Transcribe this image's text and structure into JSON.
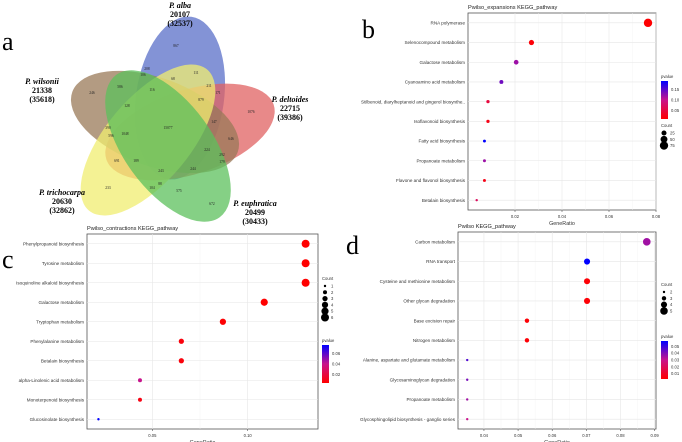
{
  "venn": {
    "letter": "a",
    "sets": [
      {
        "key": "alba",
        "name": "P. alba",
        "genes": "20107",
        "total": "(32537)",
        "color": "#5a6fc8"
      },
      {
        "key": "deltoides",
        "name": "P. deltoides",
        "genes": "22715",
        "total": "(39386)",
        "color": "#e06262"
      },
      {
        "key": "wilsonii",
        "name": "P. wilsonii",
        "genes": "21338",
        "total": "(35618)",
        "color": "#9a7a58"
      },
      {
        "key": "trichocarpa",
        "name": "P. trichocarpa",
        "genes": "20630",
        "total": "(32862)",
        "color": "#f0ee70"
      },
      {
        "key": "euphratica",
        "name": "P. euphratica",
        "genes": "20499",
        "total": "(30433)",
        "color": "#5cc05c"
      }
    ],
    "counts": [
      "867",
      "208",
      "106",
      "68",
      "111",
      "211",
      "171",
      "246",
      "586",
      "116",
      "879",
      "128",
      "147",
      "15077",
      "390",
      "596",
      "1048",
      "646",
      "224",
      "292",
      "179",
      "691",
      "189",
      "243",
      "244",
      "88",
      "104",
      "575",
      "233",
      "672",
      "1076"
    ]
  },
  "chart_data": [
    {
      "letter": "b",
      "type": "scatter",
      "title": "Pwilso_expansions KEGG_pathway",
      "xlabel": "GeneRatio",
      "ylabel": "",
      "xlim": [
        0,
        0.08
      ],
      "xticks": [
        "0.02",
        "0.04",
        "0.06",
        "0.08"
      ],
      "xtick_values": [
        0.02,
        0.04,
        0.06,
        0.08
      ],
      "categories": [
        "RNA polymerase",
        "Selenocompound metabolism",
        "Galactose metabolism",
        "Cyanoamino acid metabolism",
        "Stilbenoid, diarylheptanoid and gingerol biosynthe..",
        "Isoflavonoid biosynthesis",
        "Fatty acid biosynthesis",
        "Propanoate metabolism",
        "Flavone and flavonol biosynthesis",
        "Betalain biosynthesis"
      ],
      "x": [
        0.0766,
        0.027,
        0.0205,
        0.0142,
        0.0085,
        0.0085,
        0.007,
        0.007,
        0.007,
        0.0037
      ],
      "count": [
        77,
        27,
        21,
        14,
        9,
        9,
        7,
        7,
        7,
        4
      ],
      "pvalue": [
        0.001,
        0.005,
        0.11,
        0.13,
        0.04,
        0.015,
        0.18,
        0.11,
        0.015,
        0.06
      ],
      "pvalue_range": [
        0,
        0.18
      ],
      "count_legend": {
        "title": "Count",
        "values": [
          "25",
          "50",
          "75"
        ],
        "nums": [
          25,
          50,
          75
        ]
      },
      "pvalue_legend": {
        "title": "pvalue",
        "ticks": [
          "0.15",
          "0.10",
          "0.05"
        ]
      },
      "legend_position": "right"
    },
    {
      "letter": "c",
      "type": "scatter",
      "title": "Pwilso_contractions KEGG_pathway",
      "xlabel": "GeneRatio",
      "ylabel": "",
      "xlim": [
        0.0157,
        0.1369
      ],
      "xticks": [
        "0.05",
        "0.10"
      ],
      "xtick_values": [
        0.05,
        0.1
      ],
      "categories": [
        "Phenylpropanoid biosynthesis",
        "Tyrosine metabolism",
        "Isoquinoline alkaloid biosynthesis",
        "Galactose metabolism",
        "Tryptophan metabolism",
        "Phenylalanine metabolism",
        "Betalain biosynthesis",
        "alpha-Linolenic acid metabolism",
        "Monoterpenoid biosynthesis",
        "Glucosinolate biosynthesis"
      ],
      "x": [
        0.1304,
        0.1304,
        0.1304,
        0.1087,
        0.087,
        0.0652,
        0.0652,
        0.0435,
        0.0435,
        0.0217
      ],
      "count": [
        6,
        6,
        6,
        5,
        4,
        3,
        3,
        2,
        2,
        1
      ],
      "pvalue": [
        0.005,
        0.005,
        0.005,
        0.005,
        0.006,
        0.008,
        0.008,
        0.04,
        0.01,
        0.075
      ],
      "pvalue_range": [
        0.005,
        0.075
      ],
      "count_legend": {
        "title": "Count",
        "values": [
          "1",
          "2",
          "3",
          "4",
          "5",
          "6"
        ],
        "nums": [
          1,
          2,
          3,
          4,
          5,
          6
        ]
      },
      "pvalue_legend": {
        "title": "pvalue",
        "ticks": [
          "0.06",
          "0.04",
          "0.02"
        ]
      },
      "legend_position": "right"
    },
    {
      "letter": "d",
      "type": "scatter",
      "title": "Pwilso KEGG_pathway",
      "xlabel": "GeneRatio",
      "ylabel": "",
      "xlim": [
        0.0324,
        0.0904
      ],
      "xticks": [
        "0.04",
        "0.05",
        "0.06",
        "0.07",
        "0.08",
        "0.09"
      ],
      "xtick_values": [
        0.04,
        0.05,
        0.06,
        0.07,
        0.08,
        0.09
      ],
      "categories": [
        "Carbon metabolism",
        "RNA transport",
        "Cysteine and methionine metabolism",
        "Other glycan degradation",
        "Base excision repair",
        "Nitrogen metabolism",
        "Alanine, aspartate and glutamate metabolism",
        "Glycosaminoglycan degradation",
        "Propanoate metabolism",
        "Glycosphingolipid biosynthesis - ganglio series"
      ],
      "x": [
        0.0877,
        0.0702,
        0.0702,
        0.0702,
        0.0526,
        0.0526,
        0.0351,
        0.0351,
        0.0351,
        0.0351
      ],
      "count": [
        5,
        4,
        4,
        4,
        3,
        3,
        2,
        2,
        2,
        2
      ],
      "pvalue": [
        0.035,
        0.055,
        0.006,
        0.006,
        0.006,
        0.006,
        0.045,
        0.04,
        0.035,
        0.03
      ],
      "pvalue_range": [
        0.005,
        0.055
      ],
      "count_legend": {
        "title": "Count",
        "values": [
          "2",
          "3",
          "4",
          "5"
        ],
        "nums": [
          2,
          3,
          4,
          5
        ]
      },
      "pvalue_legend": {
        "title": "pvalue",
        "ticks": [
          "0.05",
          "0.04",
          "0.03",
          "0.02",
          "0.01"
        ]
      },
      "legend_position": "right"
    }
  ]
}
